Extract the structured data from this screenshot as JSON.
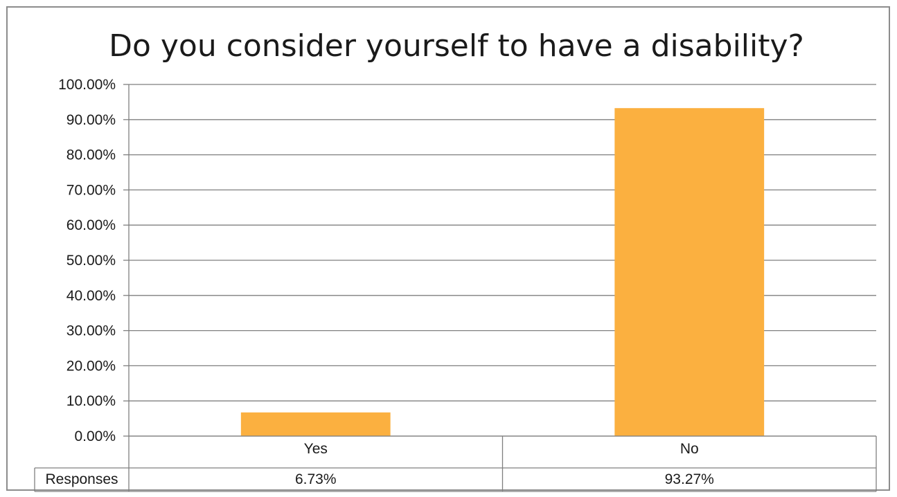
{
  "chart_data": {
    "type": "bar",
    "title": "Do you consider yourself to have a disability?",
    "categories": [
      "Yes",
      "No"
    ],
    "series": [
      {
        "name": "Responses",
        "values": [
          6.73,
          93.27
        ]
      }
    ],
    "data_labels": [
      "6.73%",
      "93.27%"
    ],
    "y_tick_labels": [
      "0.00%",
      "10.00%",
      "20.00%",
      "30.00%",
      "40.00%",
      "50.00%",
      "60.00%",
      "70.00%",
      "80.00%",
      "90.00%",
      "100.00%"
    ],
    "ylim": [
      0,
      100
    ],
    "grid": true,
    "data_table": true,
    "colors": {
      "bar": "#FBB040",
      "grid": "#7f7f7f",
      "text": "#1a1a1a"
    }
  }
}
